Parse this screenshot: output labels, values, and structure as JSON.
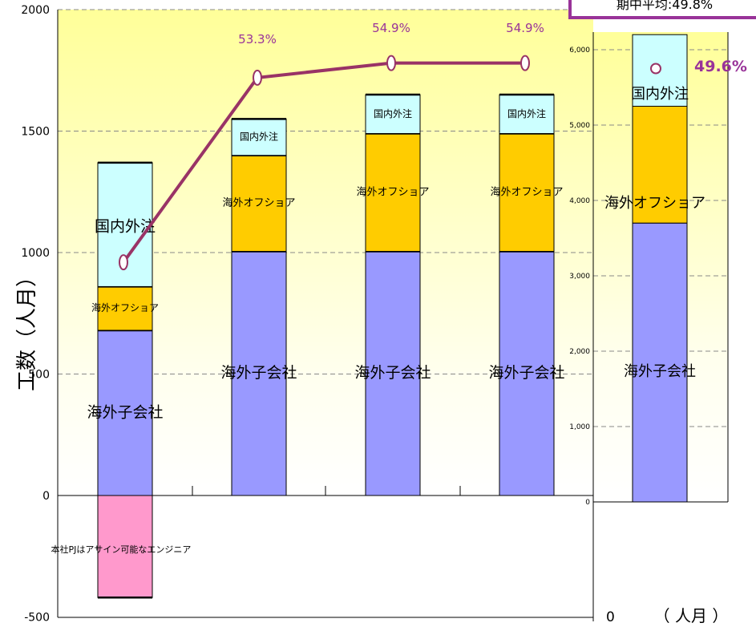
{
  "chart_data": [
    {
      "type": "bar",
      "stacked": true,
      "categories": [
        "",
        "",
        "",
        ""
      ],
      "ylabel": "工数（人月）",
      "ylim": [
        -500,
        2000
      ],
      "yticks": [
        "2000",
        "1500",
        "1000",
        "500",
        "0",
        "-500"
      ],
      "grid": true,
      "series": [
        {
          "name": "本社PJはアサイン可能なエンジニア",
          "color": "#FF99CC",
          "values": [
            -420,
            0,
            0,
            0
          ]
        },
        {
          "name": "海外子会社",
          "color": "#9999FF",
          "values": [
            680,
            1005,
            1005,
            1005
          ]
        },
        {
          "name": "海外オフショア",
          "color": "#FFCC00",
          "values": [
            180,
            395,
            485,
            485
          ]
        },
        {
          "name": "国内外注",
          "color": "#CCFFFF",
          "values": [
            510,
            150,
            160,
            160
          ]
        }
      ],
      "line": {
        "color": "#993366",
        "values": [
          960,
          1720,
          1780,
          1780
        ],
        "labels": [
          "",
          "53.3%",
          "54.9%",
          "54.9%"
        ]
      }
    },
    {
      "type": "bar",
      "stacked": true,
      "categories": [
        ""
      ],
      "ylim": [
        0,
        6500
      ],
      "yticks": [
        "6,000",
        "5,000",
        "4,000",
        "3,000",
        "2,000",
        "1,000",
        "0"
      ],
      "grid": true,
      "series": [
        {
          "name": "海外子会社",
          "color": "#9999FF",
          "values": [
            3700
          ]
        },
        {
          "name": "海外オフショア",
          "color": "#FFCC00",
          "values": [
            1550
          ]
        },
        {
          "name": "国内外注",
          "color": "#CCFFFF",
          "values": [
            950
          ]
        }
      ],
      "marker_label": "49.6%",
      "marker_value": 5750,
      "axis_unit": "（ 人月 ）",
      "axis_zero": "0"
    }
  ],
  "summary_box": {
    "text": "期中平均:49.8%"
  },
  "colors": {
    "line": "#993366",
    "label": "#993399",
    "plot_bg_top": "#FFFFD0",
    "plot_bg_bottom": "#FFFFFF"
  }
}
